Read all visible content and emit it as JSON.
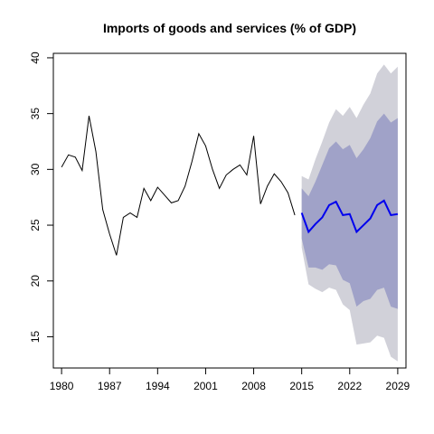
{
  "chart_data": {
    "type": "line",
    "title": "Imports of goods and services (% of GDP)",
    "xlabel": "",
    "ylabel": "",
    "xlim": [
      1978.8,
      2030.2
    ],
    "ylim": [
      12.2,
      40.4
    ],
    "x_ticks": [
      1980,
      1987,
      1994,
      2001,
      2008,
      2015,
      2022,
      2029
    ],
    "y_ticks": [
      15,
      20,
      25,
      30,
      35,
      40
    ],
    "grid": false,
    "legend": "none",
    "colors": {
      "history": "#000000",
      "forecast": "#0000ee",
      "band_95": "#d1d1d9",
      "band_80": "#a0a2c8"
    },
    "series": [
      {
        "role": "history",
        "x": [
          1980,
          1981,
          1982,
          1983,
          1984,
          1985,
          1986,
          1987,
          1988,
          1989,
          1990,
          1991,
          1992,
          1993,
          1994,
          1995,
          1996,
          1997,
          1998,
          1999,
          2000,
          2001,
          2002,
          2003,
          2004,
          2005,
          2006,
          2007,
          2008,
          2009,
          2010,
          2011,
          2012,
          2013,
          2014
        ],
        "values": [
          30.2,
          31.3,
          31.1,
          29.9,
          34.8,
          31.6,
          26.4,
          24.2,
          22.3,
          25.7,
          26.1,
          25.7,
          28.3,
          27.2,
          28.4,
          27.7,
          27.0,
          27.2,
          28.5,
          30.7,
          33.2,
          32.1,
          30.0,
          28.3,
          29.5,
          30.0,
          30.4,
          29.5,
          33.0,
          26.9,
          28.5,
          29.6,
          28.9,
          27.9,
          25.9
        ]
      },
      {
        "role": "forecast",
        "x": [
          2015,
          2016,
          2017,
          2018,
          2019,
          2020,
          2021,
          2022,
          2023,
          2024,
          2025,
          2026,
          2027,
          2028,
          2029
        ],
        "values": [
          26.1,
          24.4,
          25.1,
          25.7,
          26.8,
          27.1,
          25.9,
          26.0,
          24.4,
          25.0,
          25.6,
          26.8,
          27.2,
          25.9,
          26.0
        ],
        "lower_80": [
          23.8,
          21.2,
          21.2,
          21.0,
          21.5,
          21.4,
          20.1,
          19.8,
          17.7,
          18.2,
          18.4,
          19.2,
          19.4,
          17.7,
          17.5
        ],
        "upper_80": [
          28.3,
          27.6,
          28.9,
          30.4,
          31.9,
          32.5,
          31.8,
          32.2,
          31.0,
          31.8,
          32.8,
          34.3,
          35.0,
          34.2,
          34.6
        ],
        "lower_95": [
          23.0,
          19.7,
          19.3,
          19.0,
          19.4,
          19.2,
          17.9,
          17.4,
          14.3,
          14.4,
          14.5,
          15.1,
          14.9,
          13.2,
          12.8
        ],
        "upper_95": [
          29.4,
          29.1,
          30.9,
          32.5,
          34.2,
          35.4,
          34.8,
          35.6,
          34.6,
          35.8,
          36.8,
          38.6,
          39.4,
          38.6,
          39.2
        ]
      }
    ]
  }
}
